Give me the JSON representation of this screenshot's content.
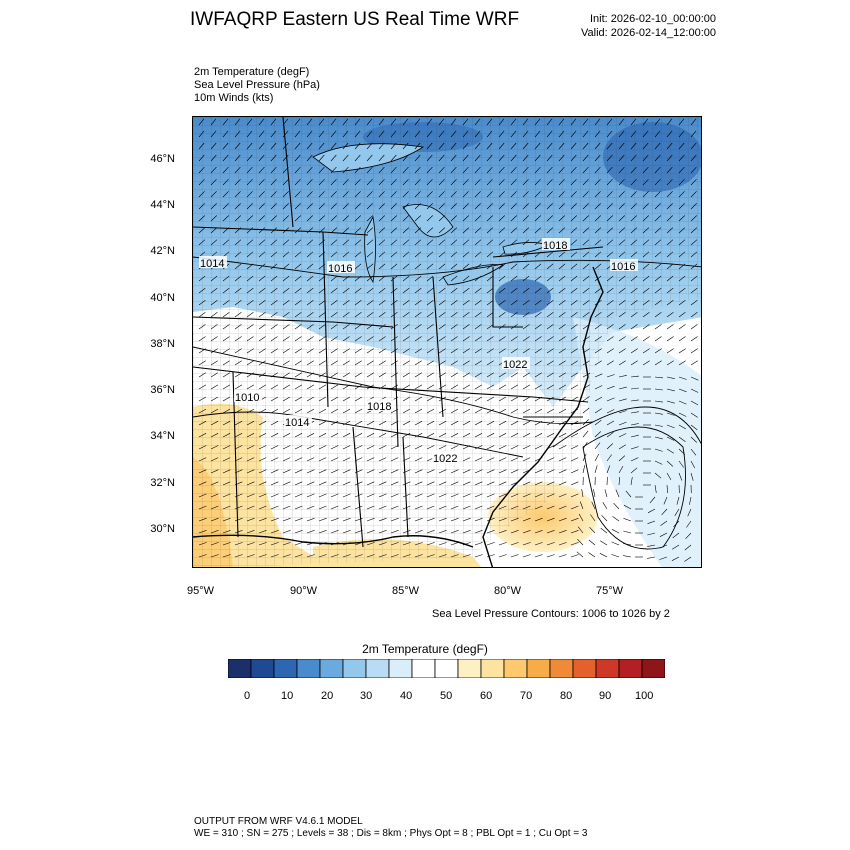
{
  "header": {
    "title": "IWFAQRP Eastern US Real Time WRF",
    "init": "Init: 2026-02-10_00:00:00",
    "valid": "Valid: 2026-02-14_12:00:00"
  },
  "fields": [
    "2m Temperature   (degF)",
    "Sea Level Pressure   (hPa)",
    "10m Winds   (kts)"
  ],
  "map": {
    "lat_labels": [
      "46°N",
      "44°N",
      "42°N",
      "40°N",
      "38°N",
      "36°N",
      "34°N",
      "32°N",
      "30°N"
    ],
    "lon_labels": [
      "95°W",
      "90°W",
      "85°W",
      "80°W",
      "75°W"
    ],
    "pressure_labels": [
      "1014",
      "1016",
      "1018",
      "1016",
      "1022",
      "1010",
      "1018",
      "1014",
      "1022"
    ],
    "contour_note": "Sea Level Pressure Contours: 1006 to 1026 by 2"
  },
  "colorbar": {
    "title": "2m Temperature  (degF)",
    "colors": [
      "#1b2f6b",
      "#1f4a93",
      "#2d66b1",
      "#4a8bcc",
      "#6aaade",
      "#93c7ec",
      "#b8dcf3",
      "#daeefa",
      "#ffffff",
      "#ffffff",
      "#fff0c4",
      "#fde3a0",
      "#fdc86e",
      "#f8ac48",
      "#f08a38",
      "#e6602c",
      "#cf3826",
      "#b31f22",
      "#8e1519"
    ],
    "ticks": [
      "0",
      "10",
      "20",
      "30",
      "40",
      "50",
      "60",
      "70",
      "80",
      "90",
      "100"
    ]
  },
  "footer": {
    "line1": "OUTPUT FROM WRF V4.6.1 MODEL",
    "line2": "WE = 310 ; SN = 275 ; Levels = 38 ; Dis = 8km ; Phys Opt = 8 ; PBL Opt = 1 ; Cu Opt = 3"
  }
}
